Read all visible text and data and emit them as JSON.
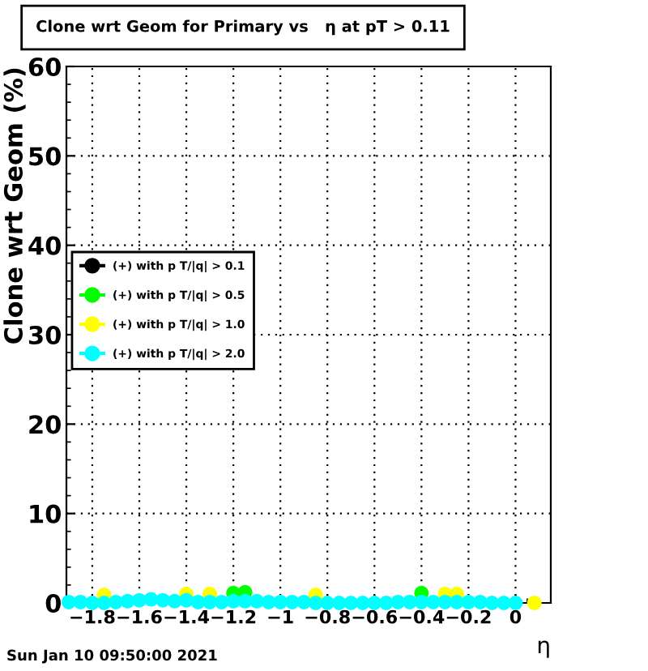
{
  "chart_data": {
    "type": "scatter",
    "title": "Clone wrt Geom for Primary vs   η at pT > 0.11",
    "xlabel": "η",
    "ylabel": "Clone wrt Geom (%)",
    "x": [
      -1.9,
      -1.85,
      -1.8,
      -1.75,
      -1.7,
      -1.65,
      -1.6,
      -1.55,
      -1.5,
      -1.45,
      -1.4,
      -1.35,
      -1.3,
      -1.25,
      -1.2,
      -1.15,
      -1.1,
      -1.05,
      -1.0,
      -0.95,
      -0.9,
      -0.85,
      -0.8,
      -0.75,
      -0.7,
      -0.65,
      -0.6,
      -0.55,
      -0.5,
      -0.45,
      -0.4,
      -0.35,
      -0.3,
      -0.25,
      -0.2,
      -0.15,
      -0.1,
      -0.05,
      0.0
    ],
    "series": [
      {
        "name": "(+) with p T/|q| > 0.1",
        "color": "#000000",
        "values": [
          null,
          null,
          null,
          null,
          null,
          null,
          null,
          null,
          null,
          null,
          null,
          null,
          null,
          null,
          null,
          null,
          null,
          null,
          null,
          null,
          null,
          null,
          null,
          null,
          null,
          null,
          null,
          null,
          null,
          null,
          null,
          null,
          null,
          null,
          null,
          null,
          null,
          null,
          null
        ]
      },
      {
        "name": "(+) with p T/|q| > 0.5",
        "color": "#00ff00",
        "values": [
          null,
          null,
          null,
          null,
          null,
          null,
          null,
          null,
          null,
          null,
          null,
          null,
          null,
          null,
          1.1,
          1.2,
          null,
          null,
          null,
          null,
          null,
          null,
          null,
          null,
          null,
          null,
          null,
          null,
          null,
          null,
          1.1,
          null,
          null,
          null,
          null,
          null,
          null,
          null,
          null
        ]
      },
      {
        "name": "(+) with p T/|q| > 1.0",
        "color": "#ffff00",
        "values": [
          null,
          null,
          null,
          0.9,
          null,
          null,
          null,
          null,
          null,
          null,
          1.0,
          null,
          1.0,
          null,
          null,
          null,
          null,
          null,
          null,
          null,
          null,
          0.9,
          null,
          null,
          null,
          null,
          null,
          null,
          null,
          null,
          null,
          null,
          1.0,
          1.0,
          null,
          null,
          null,
          null,
          null
        ]
      },
      {
        "name": "(+) with p T/|q| > 2.0",
        "color": "#00ffff",
        "values": [
          0.1,
          0.1,
          0.0,
          0.0,
          0.1,
          0.2,
          0.3,
          0.4,
          0.3,
          0.2,
          0.3,
          0.1,
          0.1,
          0.1,
          0.2,
          0.2,
          0.2,
          0.1,
          0.1,
          0.1,
          0.1,
          0.0,
          0.0,
          0.0,
          0.0,
          0.0,
          0.0,
          0.0,
          0.1,
          0.1,
          0.1,
          0.1,
          0.1,
          0.1,
          0.1,
          0.1,
          0.0,
          0.0,
          0.0
        ]
      },
      {
        "color": "#ffff00",
        "x": [
          0.08
        ],
        "values": [
          0.0
        ]
      }
    ],
    "xlim": [
      -1.91,
      0.15
    ],
    "ylim": [
      0,
      60
    ],
    "xticks": [
      -1.8,
      -1.6,
      -1.4,
      -1.2,
      -1,
      -0.8,
      -0.6,
      -0.4,
      -0.2,
      0
    ],
    "yticks": [
      0,
      10,
      20,
      30,
      40,
      50,
      60
    ],
    "grid": true,
    "legend": "left",
    "marker": "circle",
    "annotations": [
      "Sun Jan 10 09:50:00 2021"
    ]
  }
}
